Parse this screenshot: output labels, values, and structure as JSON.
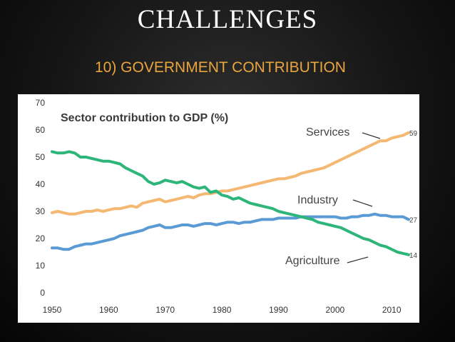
{
  "slide": {
    "title": "CHALLENGES",
    "subtitle": "10) GOVERNMENT CONTRIBUTION"
  },
  "chart_data": {
    "type": "line",
    "title": "Sector contribution to GDP (%)",
    "xlabel": "",
    "ylabel": "",
    "xlim": [
      1950,
      2013
    ],
    "ylim": [
      0,
      70
    ],
    "x_ticks": [
      "1950",
      "1960",
      "1970",
      "1980",
      "1990",
      "2000",
      "2010"
    ],
    "y_ticks": [
      "0",
      "10",
      "20",
      "30",
      "40",
      "50",
      "60",
      "70"
    ],
    "grid": false,
    "x": [
      1950,
      1951,
      1952,
      1953,
      1954,
      1955,
      1956,
      1957,
      1958,
      1959,
      1960,
      1961,
      1962,
      1963,
      1964,
      1965,
      1966,
      1967,
      1968,
      1969,
      1970,
      1971,
      1972,
      1973,
      1974,
      1975,
      1976,
      1977,
      1978,
      1979,
      1980,
      1981,
      1982,
      1983,
      1984,
      1985,
      1986,
      1987,
      1988,
      1989,
      1990,
      1991,
      1992,
      1993,
      1994,
      1995,
      1996,
      1997,
      1998,
      1999,
      2000,
      2001,
      2002,
      2003,
      2004,
      2005,
      2006,
      2007,
      2008,
      2009,
      2010,
      2011,
      2012,
      2013
    ],
    "series": [
      {
        "name": "Services",
        "color": "#f4b872",
        "end_label": "59",
        "values": [
          29.5,
          30,
          29.5,
          29,
          29,
          29.5,
          30,
          30,
          30.5,
          30,
          30.5,
          31,
          31,
          31.5,
          32,
          31.5,
          33,
          33.5,
          34,
          34.5,
          33.5,
          34,
          34.5,
          35,
          35.5,
          35,
          36,
          36.5,
          36.5,
          37,
          37.5,
          37.5,
          38,
          38.5,
          39,
          39.5,
          40,
          40.5,
          41,
          41.5,
          42,
          42,
          42.5,
          43,
          44,
          44.5,
          45,
          45.5,
          46,
          47,
          48,
          49,
          50,
          51,
          52,
          53,
          54,
          55,
          56,
          56,
          57,
          57.5,
          58,
          59
        ]
      },
      {
        "name": "Industry",
        "color": "#5b9bd5",
        "end_label": "27",
        "values": [
          16.5,
          16.5,
          16,
          16,
          17,
          17.5,
          18,
          18,
          18.5,
          19,
          19.5,
          20,
          21,
          21.5,
          22,
          22.5,
          23,
          24,
          24.5,
          25,
          24,
          24,
          24.5,
          25,
          25,
          24.5,
          25,
          25.5,
          25.5,
          25,
          25.5,
          26,
          26,
          25.5,
          26,
          26,
          26.5,
          27,
          27,
          27,
          27.5,
          27.5,
          27.5,
          27.5,
          28,
          28,
          28,
          28,
          28,
          28,
          28,
          27.5,
          27.5,
          28,
          28,
          28.5,
          28.5,
          29,
          28.5,
          28.5,
          28,
          28,
          28,
          27
        ]
      },
      {
        "name": "Agriculture",
        "color": "#2db57a",
        "end_label": "14",
        "values": [
          52,
          51.5,
          51.5,
          52,
          51.5,
          50,
          50,
          49.5,
          49,
          48.5,
          48.5,
          48,
          47.5,
          46,
          45,
          44,
          43,
          41,
          40,
          40.5,
          41.5,
          41,
          40.5,
          41,
          40,
          39,
          38.5,
          39,
          37,
          37.5,
          36,
          35.5,
          34.5,
          35,
          34,
          33,
          32.5,
          32,
          31.5,
          31,
          30,
          29.5,
          29,
          28.5,
          28,
          27.5,
          27,
          26,
          25.5,
          25,
          24.5,
          24,
          23,
          22,
          21,
          20,
          19.5,
          18.5,
          17.5,
          17,
          16,
          15,
          14.5,
          14
        ]
      }
    ]
  }
}
